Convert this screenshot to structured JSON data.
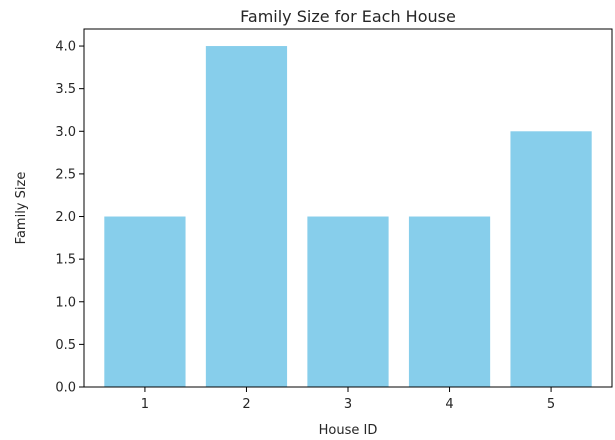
{
  "chart_data": {
    "type": "bar",
    "title": "Family Size for Each House",
    "xlabel": "House ID",
    "ylabel": "Family Size",
    "categories": [
      "1",
      "2",
      "3",
      "4",
      "5"
    ],
    "values": [
      2,
      4,
      2,
      2,
      3
    ],
    "ylim": [
      0,
      4.2
    ],
    "yticks": [
      "0.0",
      "0.5",
      "1.0",
      "1.5",
      "2.0",
      "2.5",
      "3.0",
      "3.5",
      "4.0"
    ],
    "bar_color": "#87ceeb",
    "grid": false,
    "legend": "none"
  }
}
